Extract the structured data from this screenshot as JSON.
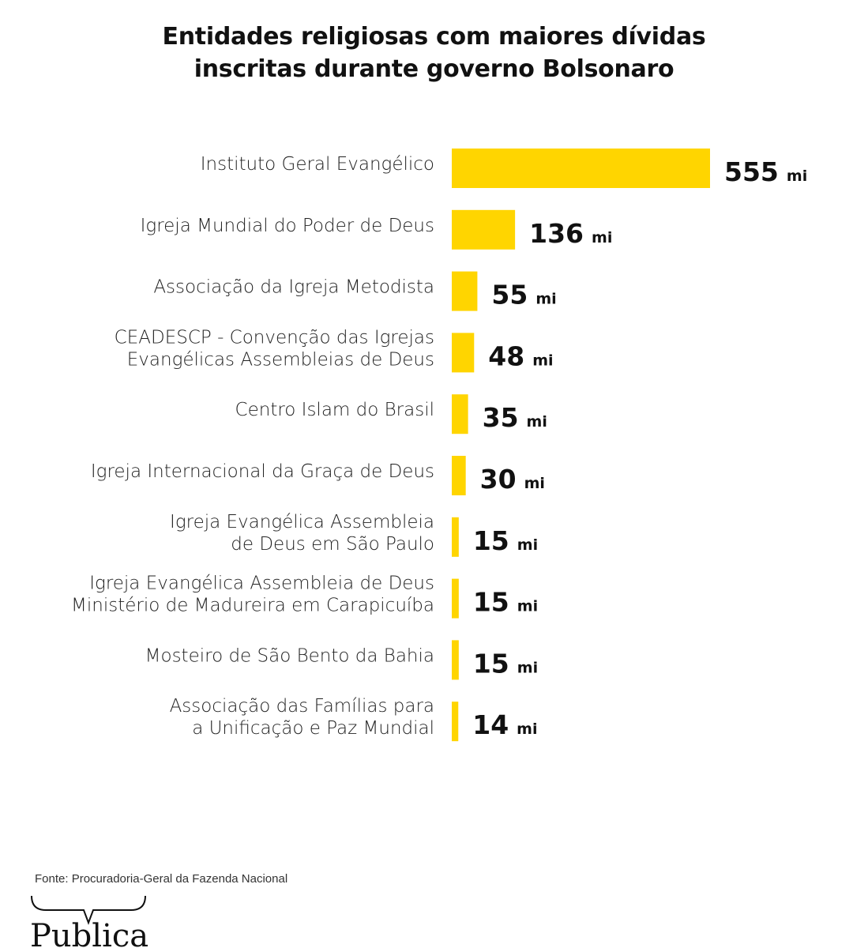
{
  "chart_data": {
    "type": "bar",
    "orientation": "horizontal",
    "title": "Entidades religiosas com maiores dívidas inscritas durante governo Bolsonaro",
    "title_lines": [
      "Entidades religiosas com maiores dívidas",
      "inscritas durante governo Bolsonaro"
    ],
    "xlabel": "",
    "ylabel": "",
    "unit": "mi",
    "xlim": [
      0,
      555
    ],
    "grid": false,
    "bar_color": "#FFD500",
    "categories": [
      [
        "Instituto Geral Evangélico"
      ],
      [
        "Igreja Mundial do Poder de Deus"
      ],
      [
        "Associação da Igreja Metodista"
      ],
      [
        "CEADESCP - Convenção das Igrejas",
        "Evangélicas Assembleias de Deus"
      ],
      [
        "Centro Islam do Brasil"
      ],
      [
        "Igreja Internacional da Graça de Deus"
      ],
      [
        "Igreja Evangélica Assembleia",
        "de Deus em São Paulo"
      ],
      [
        "Igreja Evangélica Assembleia de Deus",
        "Ministério de Madureira em Carapicuíba"
      ],
      [
        "Mosteiro de São Bento da Bahia"
      ],
      [
        "Associação das Famílias para",
        "a Unificação e Paz Mundial"
      ]
    ],
    "values": [
      555,
      136,
      55,
      48,
      35,
      30,
      15,
      15,
      15,
      14
    ],
    "value_labels": [
      "555",
      "136",
      "55",
      "48",
      "35",
      "30",
      "15",
      "15",
      "15",
      "14"
    ]
  },
  "footer": {
    "source": "Fonte: Procuradoria-Geral da Fazenda Nacional",
    "logo_text": "Pública"
  }
}
